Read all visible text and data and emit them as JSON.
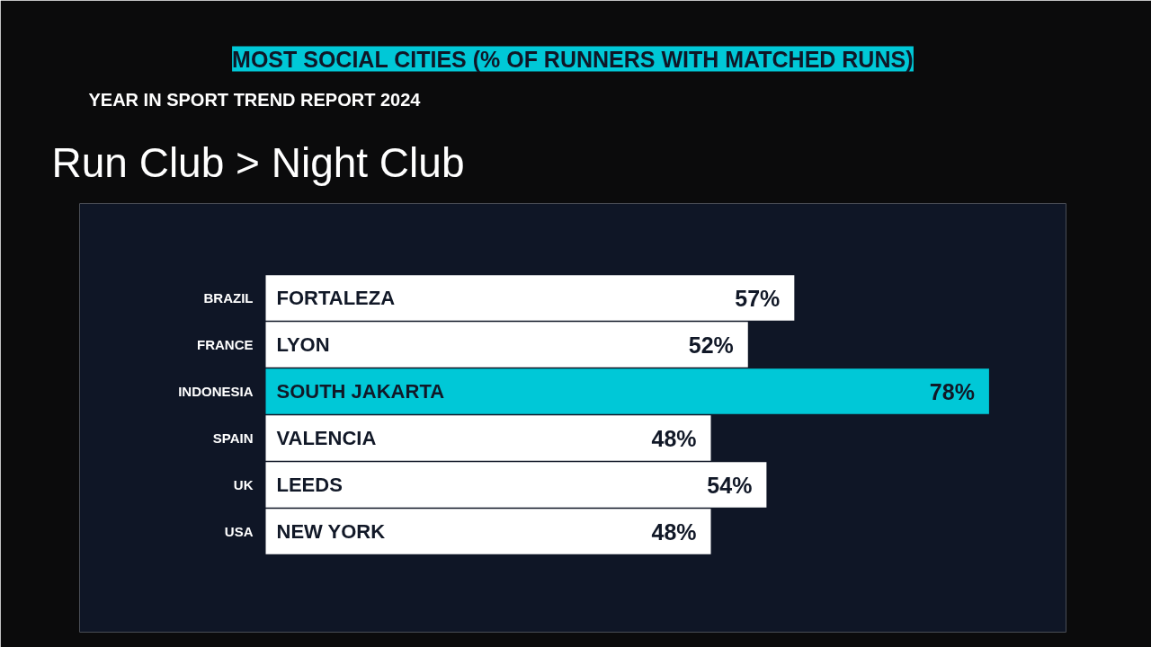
{
  "chart_data": {
    "type": "bar",
    "orientation": "horizontal",
    "title": "MOST SOCIAL CITIES (% OF RUNNERS WITH MATCHED RUNS)",
    "annotations": [
      "YEAR IN SPORT TREND REPORT 2024",
      "Run Club > Night Club",
      {
        "text": "FORTALEZA",
        "y": "BRAZIL"
      },
      {
        "text": "LYON",
        "y": "FRANCE"
      },
      {
        "text": "SOUTH JAKARTA",
        "y": "INDONESIA"
      },
      {
        "text": "VALENCIA",
        "y": "SPAIN"
      },
      {
        "text": "LEEDS",
        "y": "UK"
      },
      {
        "text": "NEW YORK",
        "y": "USA"
      }
    ],
    "categories": [
      "BRAZIL",
      "FRANCE",
      "INDONESIA",
      "SPAIN",
      "UK",
      "USA"
    ],
    "values": [
      57,
      52,
      78,
      48,
      54,
      48
    ],
    "value_labels": [
      "57%",
      "52%",
      "78%",
      "48%",
      "54%",
      "48%"
    ],
    "colors": [
      "#ffffff",
      "#ffffff",
      "#00c8d7",
      "#ffffff",
      "#ffffff",
      "#ffffff"
    ],
    "xlim": [
      0,
      86.3
    ],
    "tick_labels": "y",
    "grid": false
  }
}
